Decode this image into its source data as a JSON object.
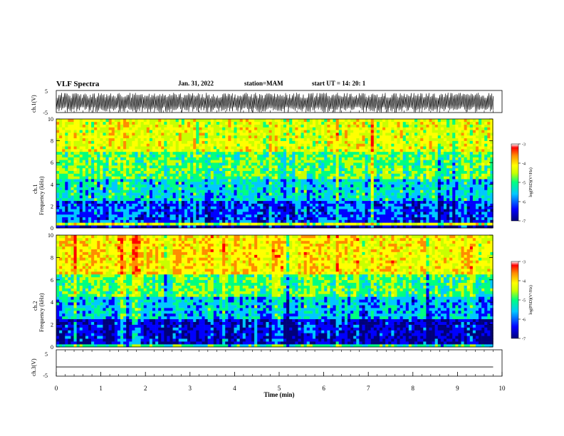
{
  "header": {
    "title": "VLF Spectra",
    "date": "Jan. 31, 2022",
    "station": "station=MAM",
    "start": "start UT =  14: 20: 1"
  },
  "chart_data": [
    {
      "type": "line",
      "title": "VLF Spectra",
      "ylabel": "ch.1(V)",
      "ylim": [
        -5,
        5
      ],
      "ytick_labels": [
        "5",
        "-5"
      ],
      "xlim": [
        0,
        10
      ],
      "description_values": "dense oscillating waveform between about -5 and 4 V"
    },
    {
      "type": "heatmap",
      "ylabel": "ch.1 Frequency (kHz)",
      "ylim": [
        0,
        10
      ],
      "ytick_labels": [
        "0",
        "2",
        "4",
        "6",
        "8",
        "10"
      ],
      "xlim": [
        0,
        10
      ],
      "colorbar": {
        "label": "log(PSD)(V²/Hz)",
        "range": [
          -7,
          -3
        ],
        "tick_labels": [
          "-3",
          "-4",
          "-5",
          "-6",
          "-7"
        ]
      },
      "bands": [
        {
          "f_range": [
            0,
            0.3
          ],
          "level": -6.5
        },
        {
          "f_range": [
            0.3,
            0.6
          ],
          "level": -4.2
        },
        {
          "f_range": [
            0.6,
            2.5
          ],
          "level": -6.0
        },
        {
          "f_range": [
            2.5,
            4.5
          ],
          "level": -5.4
        },
        {
          "f_range": [
            4.5,
            7.0
          ],
          "level": -4.8
        },
        {
          "f_range": [
            7.0,
            10
          ],
          "level": -4.1
        }
      ]
    },
    {
      "type": "heatmap",
      "ylabel": "ch.2 Frequency (kHz)",
      "ylim": [
        0,
        10
      ],
      "ytick_labels": [
        "0",
        "2",
        "4",
        "6",
        "8",
        "10"
      ],
      "xlim": [
        0,
        10
      ],
      "colorbar": {
        "label": "log(PSD)(V²/Hz)",
        "range": [
          -7,
          -3
        ],
        "tick_labels": [
          "-3",
          "-4",
          "-5",
          "-6",
          "-7"
        ]
      },
      "bands": [
        {
          "f_range": [
            0,
            0.3
          ],
          "level": -5.0
        },
        {
          "f_range": [
            0.3,
            2.5
          ],
          "level": -6.3
        },
        {
          "f_range": [
            2.5,
            4.5
          ],
          "level": -5.5
        },
        {
          "f_range": [
            4.5,
            6.5
          ],
          "level": -4.8
        },
        {
          "f_range": [
            6.5,
            10
          ],
          "level": -3.8
        }
      ]
    },
    {
      "type": "line",
      "ylabel": "ch.3(V)",
      "ylim": [
        -5,
        5
      ],
      "ytick_labels": [
        "5",
        "-5"
      ],
      "xlim": [
        0,
        10
      ],
      "xlabel": "Time (min)",
      "xtick_labels": [
        "0",
        "1",
        "2",
        "3",
        "4",
        "5",
        "6",
        "7",
        "8",
        "9",
        "10"
      ],
      "series": [
        {
          "x": [
            0,
            9.8
          ],
          "y": [
            -1.5,
            -1.5
          ]
        }
      ]
    }
  ],
  "colors": {
    "colormap": [
      "#00007a",
      "#0000ff",
      "#00c8ff",
      "#00ff80",
      "#c8ff00",
      "#ffff00",
      "#ff8c00",
      "#ff0000",
      "#ffffff"
    ]
  }
}
